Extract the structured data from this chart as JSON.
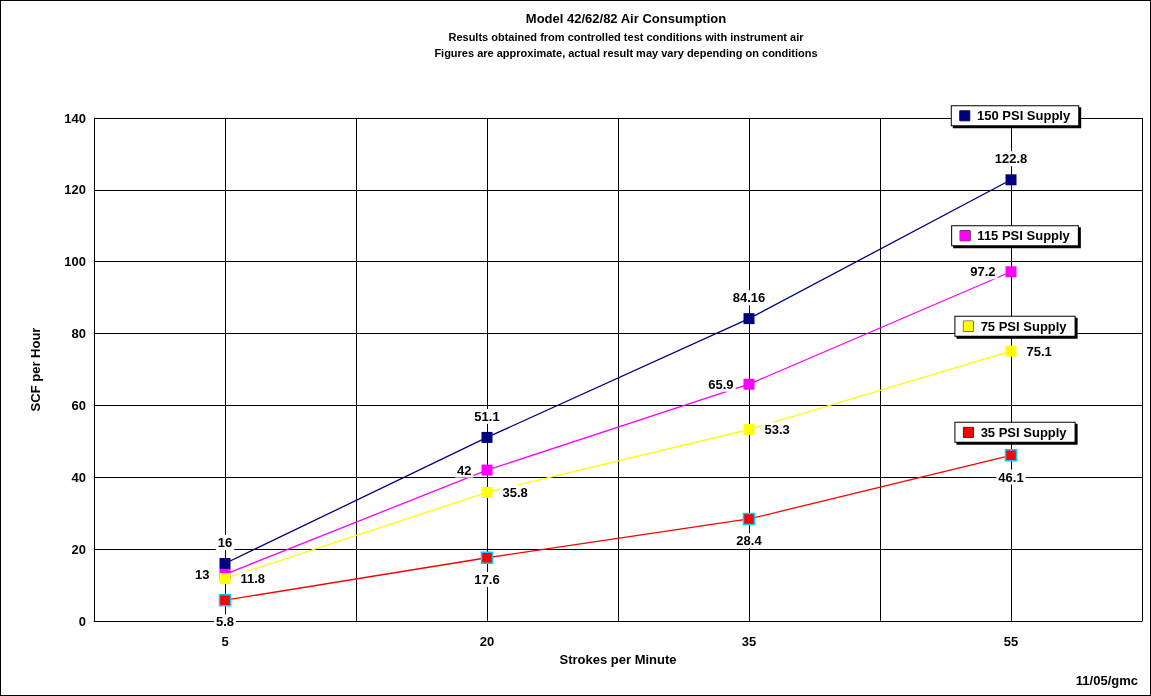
{
  "chart_data": {
    "type": "line",
    "title": "Model 42/62/82 Air Consumption",
    "subtitle": "Results obtained from controlled test conditions with instrument air\nFigures are approximate, actual result may vary depending on conditions",
    "xlabel": "Strokes per Minute",
    "ylabel": "SCF per Hour",
    "annotations": [
      "11/05/gmc"
    ],
    "categories": [
      "5",
      "20",
      "35",
      "55"
    ],
    "series": [
      {
        "name": "150 PSI Supply",
        "color": "#000080",
        "values": [
          16,
          51.1,
          84.16,
          122.8
        ]
      },
      {
        "name": "115 PSI Supply",
        "color": "#ff00ff",
        "values": [
          13,
          42,
          65.9,
          97.2
        ]
      },
      {
        "name": "75 PSI Supply",
        "color": "#ffff00",
        "values": [
          11.8,
          35.8,
          53.3,
          75.1
        ]
      },
      {
        "name": "35 PSI Supply",
        "color": "#ff0000",
        "values": [
          5.8,
          17.6,
          28.4,
          46.1
        ]
      }
    ],
    "ylim": [
      0,
      140
    ],
    "yticks": [
      0,
      20,
      40,
      60,
      80,
      100,
      120,
      140
    ],
    "grid": true,
    "legend": "right",
    "marker": "square",
    "line_style": "solid",
    "data_labels": true
  }
}
